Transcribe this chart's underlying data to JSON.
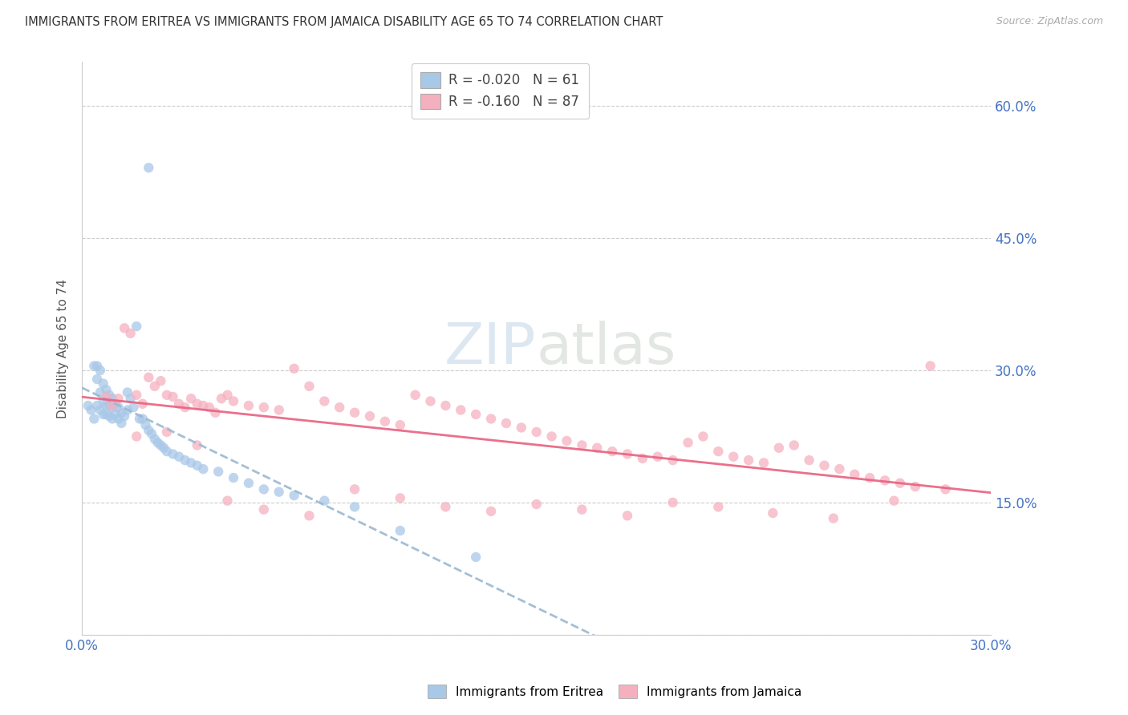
{
  "title": "IMMIGRANTS FROM ERITREA VS IMMIGRANTS FROM JAMAICA DISABILITY AGE 65 TO 74 CORRELATION CHART",
  "source": "Source: ZipAtlas.com",
  "ylabel": "Disability Age 65 to 74",
  "xmin": 0.0,
  "xmax": 0.3,
  "ymin": 0.0,
  "ymax": 0.65,
  "eritrea_R": -0.02,
  "eritrea_N": 61,
  "jamaica_R": -0.16,
  "jamaica_N": 87,
  "eritrea_color": "#a8c8e8",
  "jamaica_color": "#f5b0c0",
  "eritrea_line_color": "#9ab8d0",
  "jamaica_line_color": "#e86080",
  "legend_label_eritrea": "Immigrants from Eritrea",
  "legend_label_jamaica": "Immigrants from Jamaica",
  "title_color": "#333333",
  "axis_label_color": "#4472c4",
  "watermark_zip": "ZIP",
  "watermark_atlas": "atlas",
  "background_color": "#ffffff",
  "eritrea_x": [
    0.002,
    0.003,
    0.004,
    0.004,
    0.005,
    0.005,
    0.005,
    0.006,
    0.006,
    0.006,
    0.007,
    0.007,
    0.007,
    0.008,
    0.008,
    0.008,
    0.009,
    0.009,
    0.009,
    0.01,
    0.01,
    0.01,
    0.011,
    0.011,
    0.012,
    0.012,
    0.013,
    0.013,
    0.014,
    0.015,
    0.015,
    0.016,
    0.017,
    0.018,
    0.019,
    0.02,
    0.021,
    0.022,
    0.023,
    0.024,
    0.025,
    0.026,
    0.027,
    0.028,
    0.03,
    0.032,
    0.034,
    0.036,
    0.038,
    0.04,
    0.022,
    0.045,
    0.05,
    0.055,
    0.06,
    0.065,
    0.07,
    0.08,
    0.09,
    0.105,
    0.13
  ],
  "eritrea_y": [
    0.26,
    0.255,
    0.245,
    0.305,
    0.305,
    0.29,
    0.26,
    0.3,
    0.275,
    0.255,
    0.285,
    0.265,
    0.25,
    0.278,
    0.26,
    0.25,
    0.272,
    0.26,
    0.248,
    0.268,
    0.258,
    0.245,
    0.262,
    0.25,
    0.258,
    0.245,
    0.252,
    0.24,
    0.248,
    0.275,
    0.255,
    0.268,
    0.258,
    0.35,
    0.245,
    0.245,
    0.238,
    0.232,
    0.228,
    0.222,
    0.218,
    0.215,
    0.212,
    0.208,
    0.205,
    0.202,
    0.198,
    0.195,
    0.192,
    0.188,
    0.53,
    0.185,
    0.178,
    0.172,
    0.165,
    0.162,
    0.158,
    0.152,
    0.145,
    0.118,
    0.088
  ],
  "jamaica_x": [
    0.008,
    0.01,
    0.012,
    0.014,
    0.016,
    0.018,
    0.02,
    0.022,
    0.024,
    0.026,
    0.028,
    0.03,
    0.032,
    0.034,
    0.036,
    0.038,
    0.04,
    0.042,
    0.044,
    0.046,
    0.048,
    0.05,
    0.055,
    0.06,
    0.065,
    0.07,
    0.075,
    0.08,
    0.085,
    0.09,
    0.095,
    0.1,
    0.105,
    0.11,
    0.115,
    0.12,
    0.125,
    0.13,
    0.135,
    0.14,
    0.145,
    0.15,
    0.155,
    0.16,
    0.165,
    0.17,
    0.175,
    0.18,
    0.185,
    0.19,
    0.195,
    0.2,
    0.205,
    0.21,
    0.215,
    0.22,
    0.225,
    0.23,
    0.235,
    0.24,
    0.245,
    0.25,
    0.255,
    0.26,
    0.265,
    0.27,
    0.275,
    0.28,
    0.018,
    0.028,
    0.038,
    0.048,
    0.06,
    0.075,
    0.09,
    0.105,
    0.12,
    0.135,
    0.15,
    0.165,
    0.18,
    0.195,
    0.21,
    0.228,
    0.248,
    0.268,
    0.285
  ],
  "jamaica_y": [
    0.27,
    0.26,
    0.268,
    0.348,
    0.342,
    0.272,
    0.262,
    0.292,
    0.282,
    0.288,
    0.272,
    0.27,
    0.262,
    0.258,
    0.268,
    0.262,
    0.26,
    0.258,
    0.252,
    0.268,
    0.272,
    0.265,
    0.26,
    0.258,
    0.255,
    0.302,
    0.282,
    0.265,
    0.258,
    0.252,
    0.248,
    0.242,
    0.238,
    0.272,
    0.265,
    0.26,
    0.255,
    0.25,
    0.245,
    0.24,
    0.235,
    0.23,
    0.225,
    0.22,
    0.215,
    0.212,
    0.208,
    0.205,
    0.2,
    0.202,
    0.198,
    0.218,
    0.225,
    0.208,
    0.202,
    0.198,
    0.195,
    0.212,
    0.215,
    0.198,
    0.192,
    0.188,
    0.182,
    0.178,
    0.175,
    0.172,
    0.168,
    0.305,
    0.225,
    0.23,
    0.215,
    0.152,
    0.142,
    0.135,
    0.165,
    0.155,
    0.145,
    0.14,
    0.148,
    0.142,
    0.135,
    0.15,
    0.145,
    0.138,
    0.132,
    0.152,
    0.165
  ]
}
